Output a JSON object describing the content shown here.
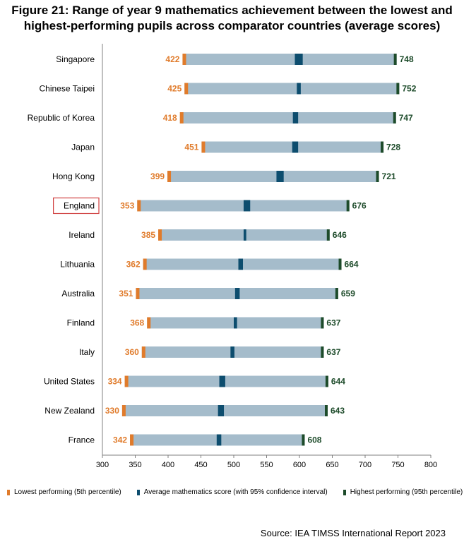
{
  "title": {
    "line1": "Figure 21: Range of year 9 mathematics achievement between the lowest and",
    "line2": "highest-performing pupils across comparator countries (average scores)"
  },
  "colors": {
    "range_bar": "#a5bccb",
    "lowest": "#e07b2b",
    "average": "#0d4d6e",
    "highest": "#1d4b2a",
    "highlight_border": "#d04040",
    "axis": "#808080"
  },
  "chart_data": {
    "type": "bar",
    "orientation": "horizontal-range",
    "xlim": [
      300,
      800
    ],
    "xticks": [
      300,
      350,
      400,
      450,
      500,
      550,
      600,
      650,
      700,
      750,
      800
    ],
    "grid": false,
    "legend_position": "bottom",
    "highlighted_category": "England",
    "categories": [
      "Singapore",
      "Chinese Taipei",
      "Republic of Korea",
      "Japan",
      "Hong Kong",
      "England",
      "Ireland",
      "Lithuania",
      "Australia",
      "Finland",
      "Italy",
      "United States",
      "New Zealand",
      "France"
    ],
    "series": [
      {
        "name": "Lowest performing (5th percentile)",
        "values": [
          422,
          425,
          418,
          451,
          399,
          353,
          385,
          362,
          351,
          368,
          360,
          334,
          330,
          342
        ]
      },
      {
        "name": "Average mathematics score (with 95% confidence interval)",
        "low": [
          593,
          596,
          590,
          589,
          565,
          515,
          515,
          507,
          502,
          500,
          495,
          478,
          476,
          474
        ],
        "high": [
          605,
          602,
          598,
          598,
          576,
          525,
          519,
          514,
          509,
          505,
          501,
          487,
          485,
          481
        ]
      },
      {
        "name": "Highest performing (95th percentile)",
        "values": [
          748,
          752,
          747,
          728,
          721,
          676,
          646,
          664,
          659,
          637,
          637,
          644,
          643,
          608
        ]
      }
    ]
  },
  "source": "Source: IEA TIMSS International Report 2023"
}
